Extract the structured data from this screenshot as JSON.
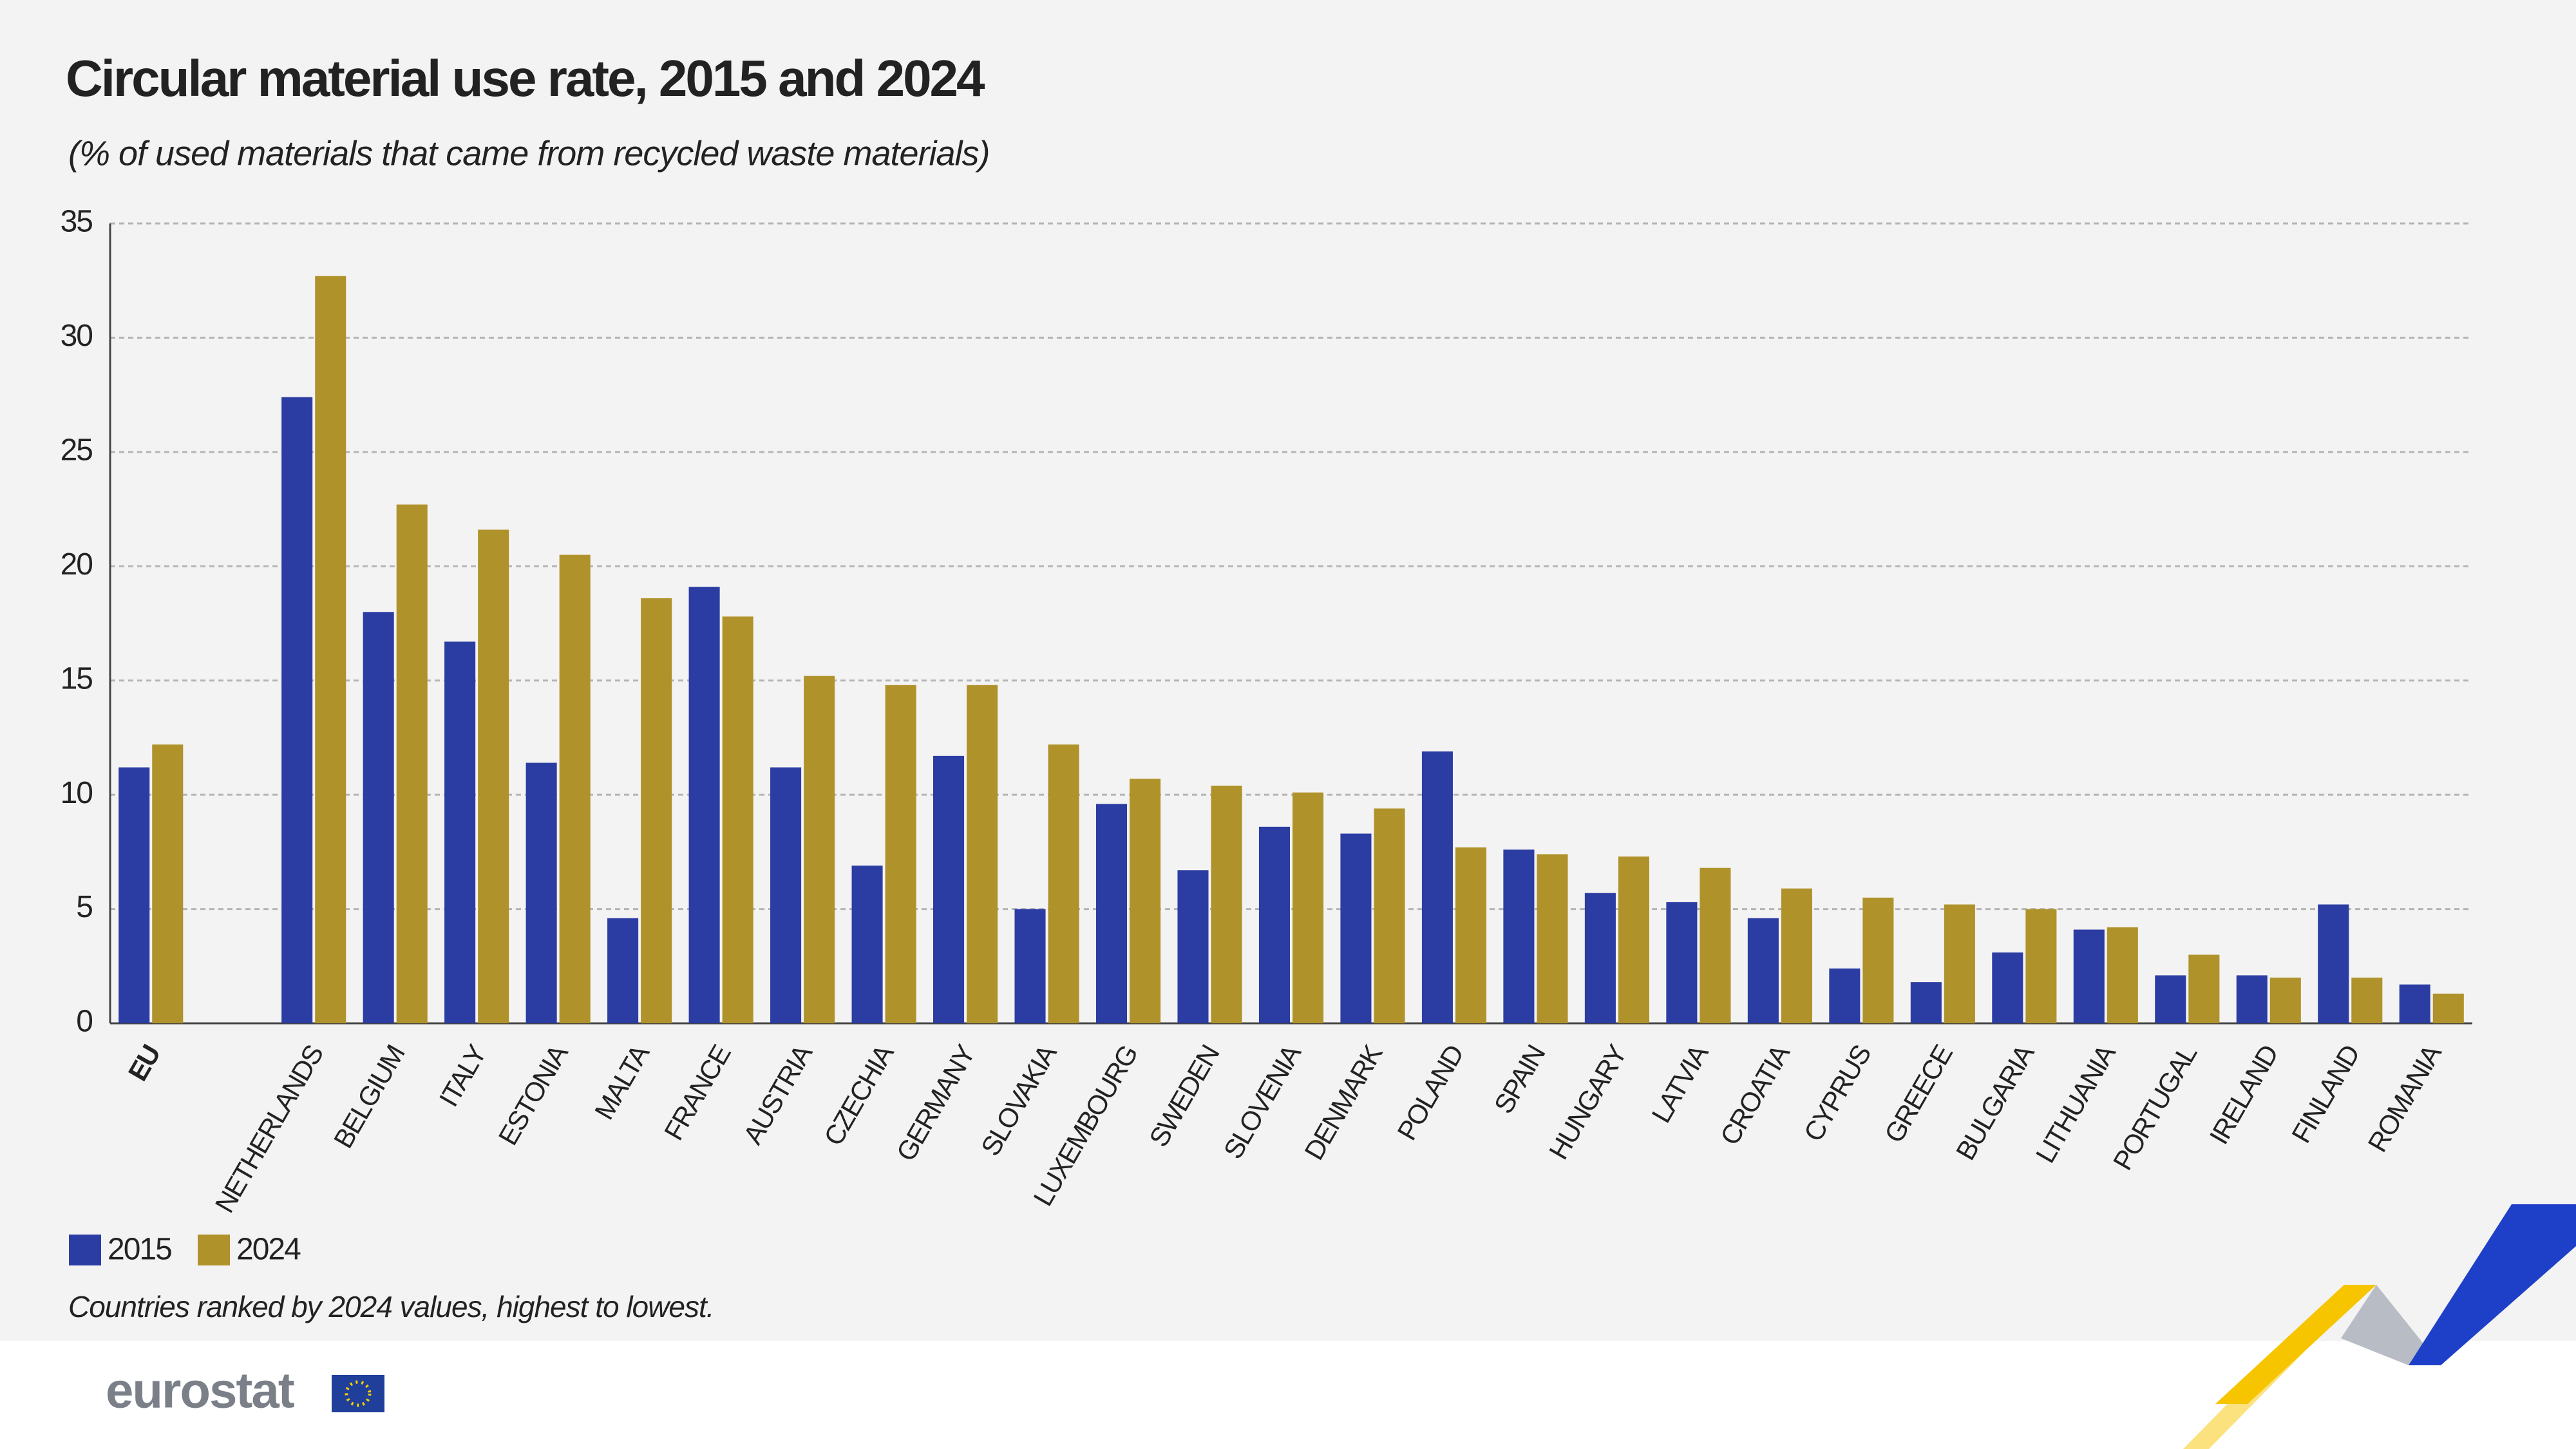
{
  "title": "Circular material use rate, 2015 and 2024",
  "subtitle": "(% of used materials that came from recycled waste materials)",
  "footnote": "Countries ranked by 2024 values, highest to lowest.",
  "logo": "eurostat",
  "chart_data": {
    "type": "bar",
    "categories": [
      "EU",
      null,
      "NETHERLANDS",
      "BELGIUM",
      "ITALY",
      "ESTONIA",
      "MALTA",
      "FRANCE",
      "AUSTRIA",
      "CZECHIA",
      "GERMANY",
      "SLOVAKIA",
      "LUXEMBOURG",
      "SWEDEN",
      "SLOVENIA",
      "DENMARK",
      "POLAND",
      "SPAIN",
      "HUNGARY",
      "LATVIA",
      "CROATIA",
      "CYPRUS",
      "GREECE",
      "BULGARIA",
      "LITHUANIA",
      "PORTUGAL",
      "IRELAND",
      "FINLAND",
      "ROMANIA"
    ],
    "series": [
      {
        "name": "2015",
        "color": "#2b3ca2",
        "values": [
          11.2,
          null,
          27.4,
          18.0,
          16.7,
          11.4,
          4.6,
          19.1,
          11.2,
          6.9,
          11.7,
          5.0,
          9.6,
          6.7,
          8.6,
          8.3,
          11.9,
          7.6,
          5.7,
          5.3,
          4.6,
          2.4,
          1.8,
          3.1,
          4.1,
          2.1,
          2.1,
          5.2,
          1.7
        ]
      },
      {
        "name": "2024",
        "color": "#b0922b",
        "values": [
          12.2,
          null,
          32.7,
          22.7,
          21.6,
          20.5,
          18.6,
          17.8,
          15.2,
          14.8,
          14.8,
          12.2,
          10.7,
          10.4,
          10.1,
          9.4,
          7.7,
          7.4,
          7.3,
          6.8,
          5.9,
          5.5,
          5.2,
          5.0,
          4.2,
          3.0,
          2.0,
          2.0,
          1.3
        ]
      }
    ],
    "ylim": [
      0,
      35
    ],
    "yticks": [
      0,
      5,
      10,
      15,
      20,
      25,
      30,
      35
    ],
    "grid": true
  }
}
